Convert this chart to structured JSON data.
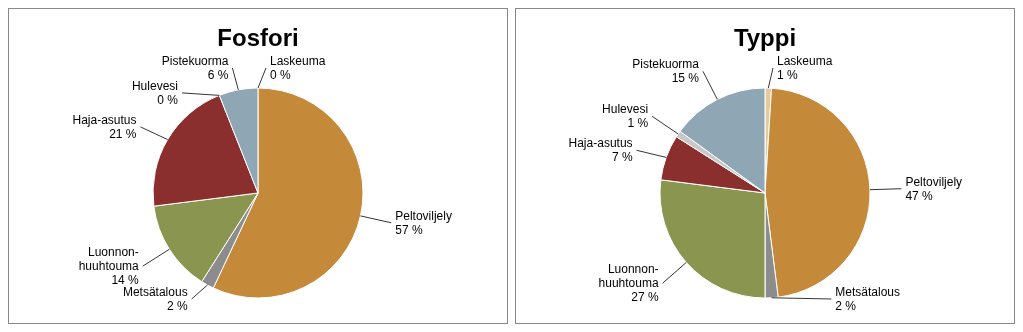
{
  "chart_data": [
    {
      "type": "pie",
      "title": "Fosfori",
      "categories": [
        "Laskeuma",
        "Peltoviljely",
        "Metsätalous",
        "Luonnon-huuhtouma",
        "Haja-asutus",
        "Hulevesi",
        "Pistekuorma"
      ],
      "values": [
        0,
        57,
        2,
        14,
        21,
        0,
        6
      ],
      "value_labels": [
        "0 %",
        "57 %",
        "2 %",
        "14 %",
        "21 %",
        "0 %",
        "6 %"
      ],
      "colors": [
        null,
        "#c48a3a",
        "#8c8c8c",
        "#8a9650",
        "#8b2e2e",
        null,
        "#8fa6b4"
      ]
    },
    {
      "type": "pie",
      "title": "Typpi",
      "categories": [
        "Laskeuma",
        "Peltoviljely",
        "Metsätalous",
        "Luonnon-huuhtouma",
        "Haja-asutus",
        "Hulevesi",
        "Pistekuorma"
      ],
      "values": [
        1,
        47,
        2,
        27,
        7,
        1,
        15
      ],
      "value_labels": [
        "1 %",
        "47 %",
        "2 %",
        "27 %",
        "7 %",
        "1 %",
        "15 %"
      ],
      "colors": [
        "#e3c9a0",
        "#c48a3a",
        "#8c8c8c",
        "#8a9650",
        "#8b2e2e",
        "#c8c8c8",
        "#8fa6b4"
      ]
    }
  ]
}
